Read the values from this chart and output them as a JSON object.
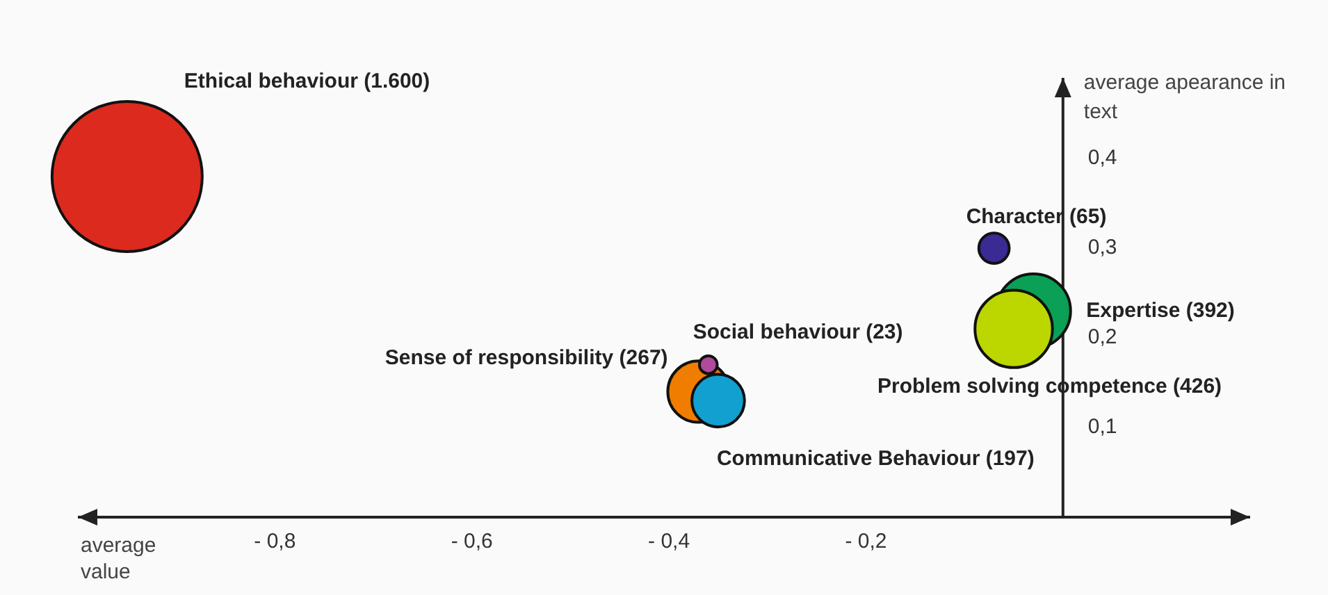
{
  "chart_data": {
    "type": "bubble",
    "xlabel": "average value",
    "ylabel": "average apearance in text",
    "xlim": [
      -1.0,
      0.19
    ],
    "ylim": [
      0,
      0.49
    ],
    "xticks": [
      {
        "value": -0.8,
        "label": "- 0,8"
      },
      {
        "value": -0.6,
        "label": "- 0,6"
      },
      {
        "value": -0.4,
        "label": "- 0,4"
      },
      {
        "value": -0.2,
        "label": "- 0,2"
      }
    ],
    "yticks": [
      {
        "value": 0.1,
        "label": "0,1"
      },
      {
        "value": 0.2,
        "label": "0,2"
      },
      {
        "value": 0.3,
        "label": "0,3"
      },
      {
        "value": 0.4,
        "label": "0,4"
      }
    ],
    "series": [
      {
        "name": "Ethical behaviour (1.600)",
        "color": "#dc2a1e",
        "x": [
          -0.95
        ],
        "values": [
          0.38
        ],
        "sizes": [
          1
        ]
      },
      {
        "name": "Character (65)",
        "color": "#3a2a94",
        "x": [
          -0.07
        ],
        "values": [
          0.3
        ],
        "sizes": [
          0.041
        ]
      },
      {
        "name": "Expertise (392)",
        "color": "#0aa055",
        "x": [
          -0.03
        ],
        "values": [
          0.23
        ],
        "sizes": [
          0.245
        ]
      },
      {
        "name": "Problem solving competence (426)",
        "color": "#bcd600",
        "x": [
          -0.05
        ],
        "values": [
          0.21
        ],
        "sizes": [
          0.266
        ]
      },
      {
        "name": "Sense of responsibility (267)",
        "color": "#f07d00",
        "x": [
          -0.37
        ],
        "values": [
          0.14
        ],
        "sizes": [
          0.167
        ]
      },
      {
        "name": "Communicative Behaviour (197)",
        "color": "#12a0d0",
        "x": [
          -0.35
        ],
        "values": [
          0.13
        ],
        "sizes": [
          0.123
        ]
      },
      {
        "name": "Social behaviour (23)",
        "color": "#b04a9a",
        "x": [
          -0.36
        ],
        "values": [
          0.17
        ],
        "sizes": [
          0.014
        ]
      }
    ]
  }
}
